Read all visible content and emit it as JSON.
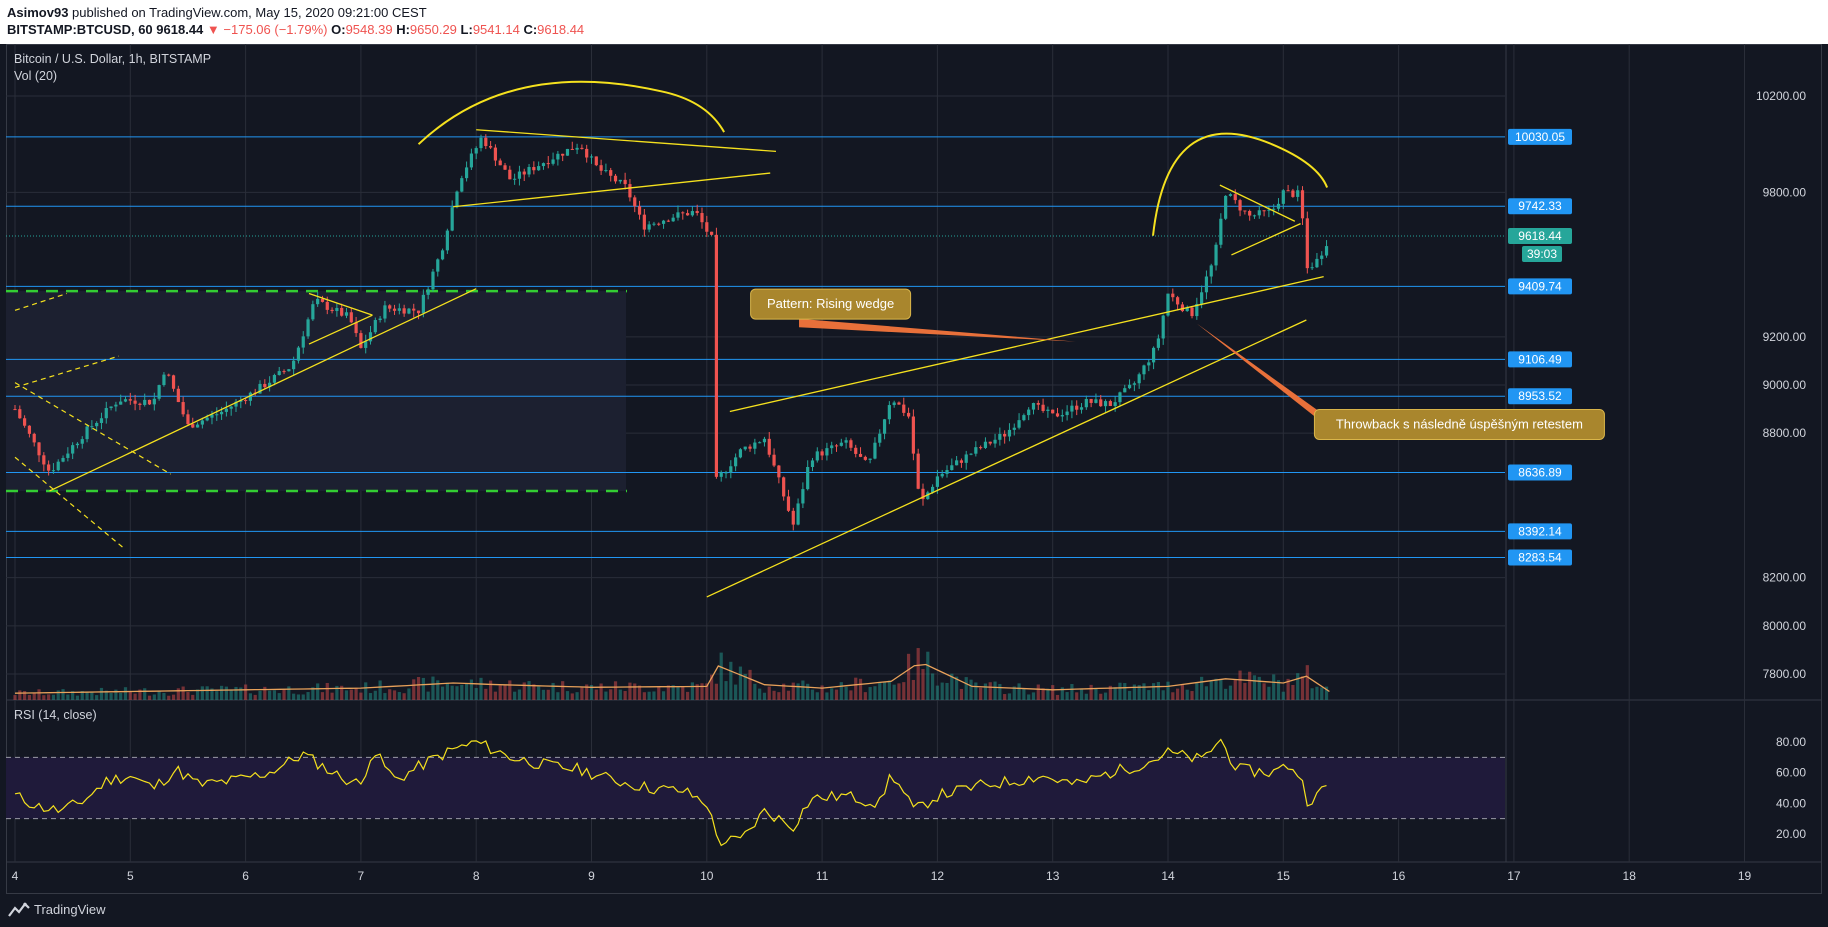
{
  "header": {
    "author": "Asimov93",
    "published_text": "published on TradingView.com, May 15, 2020 09:21:00 CEST",
    "symbol": "BITSTAMP:BTCUSD, 60",
    "last": "9618.44",
    "change_arrow": "▼",
    "change": "−175.06 (−1.79%)",
    "o_label": "O:",
    "o_value": "9548.39",
    "h_label": "H:",
    "h_value": "9650.29",
    "l_label": "L:",
    "l_value": "9541.14",
    "c_label": "C:",
    "c_value": "9618.44"
  },
  "legend": {
    "main_title": "Bitcoin / U.S. Dollar, 1h, BITSTAMP",
    "volume_label": "Vol (20)",
    "rsi_label": "RSI (14, close)"
  },
  "footer": {
    "brand": "TradingView",
    "brand_icon": "tradingview-logo-icon"
  },
  "colors": {
    "background": "#131722",
    "grid": "#2a2e39",
    "up": "#26a69a",
    "down": "#ef5350",
    "level_line": "#2196f3",
    "level_badge": "#2196f3",
    "last_badge": "#26a69a",
    "drawing": "#f5e11e",
    "support_dash": "#33cc33",
    "rsi_line": "#f5e11e",
    "rsi_band": "#1f1a3a",
    "callout_fill": "#a9862d",
    "callout_arrow": "#e8703a"
  },
  "chart_data": {
    "type": "candlestick",
    "x_labels": [
      "4",
      "5",
      "6",
      "7",
      "8",
      "9",
      "10",
      "11",
      "12",
      "13",
      "14",
      "15",
      "16",
      "17",
      "18",
      "19"
    ],
    "price_ticks": [
      "10200.00",
      "9800.00",
      "9200.00",
      "9000.00",
      "8800.00",
      "8200.00",
      "8000.00",
      "7800.00"
    ],
    "price_range": [
      7700,
      10380
    ],
    "price_tick_values": [
      10200,
      9800,
      9200,
      9000,
      8800,
      8200,
      8000,
      7800
    ],
    "levels": [
      {
        "label": "10030.05",
        "value": 10030.05
      },
      {
        "label": "9742.33",
        "value": 9742.33
      },
      {
        "label": "9409.74",
        "value": 9409.74
      },
      {
        "label": "9106.49",
        "value": 9106.49
      },
      {
        "label": "8953.52",
        "value": 8953.52
      },
      {
        "label": "8636.89",
        "value": 8636.89
      },
      {
        "label": "8392.14",
        "value": 8392.14
      },
      {
        "label": "8283.54",
        "value": 8283.54
      }
    ],
    "last_price": {
      "label": "9618.44",
      "value": 9618.44
    },
    "countdown": "39:03",
    "support_zone": {
      "top": 9390,
      "bottom": 8560
    },
    "candles_anchor_closes": [
      [
        4.0,
        8900
      ],
      [
        4.3,
        8640
      ],
      [
        4.6,
        8800
      ],
      [
        4.9,
        8940
      ],
      [
        5.2,
        8930
      ],
      [
        5.3,
        9070
      ],
      [
        5.5,
        8830
      ],
      [
        5.8,
        8890
      ],
      [
        6.1,
        8980
      ],
      [
        6.4,
        9080
      ],
      [
        6.6,
        9350
      ],
      [
        6.9,
        9280
      ],
      [
        7.0,
        9150
      ],
      [
        7.2,
        9320
      ],
      [
        7.5,
        9310
      ],
      [
        7.7,
        9560
      ],
      [
        7.85,
        9850
      ],
      [
        8.05,
        10030
      ],
      [
        8.3,
        9850
      ],
      [
        8.6,
        9930
      ],
      [
        8.9,
        10000
      ],
      [
        9.05,
        9900
      ],
      [
        9.3,
        9820
      ],
      [
        9.45,
        9660
      ],
      [
        9.7,
        9700
      ],
      [
        9.9,
        9720
      ],
      [
        10.05,
        9600
      ],
      [
        10.08,
        8600
      ],
      [
        10.3,
        8730
      ],
      [
        10.5,
        8780
      ],
      [
        10.75,
        8420
      ],
      [
        10.9,
        8700
      ],
      [
        11.2,
        8760
      ],
      [
        11.4,
        8660
      ],
      [
        11.6,
        8950
      ],
      [
        11.75,
        8870
      ],
      [
        11.85,
        8500
      ],
      [
        12.0,
        8620
      ],
      [
        12.3,
        8720
      ],
      [
        12.6,
        8800
      ],
      [
        12.8,
        8920
      ],
      [
        13.0,
        8870
      ],
      [
        13.3,
        8930
      ],
      [
        13.5,
        8920
      ],
      [
        13.7,
        9000
      ],
      [
        13.9,
        9160
      ],
      [
        14.0,
        9380
      ],
      [
        14.2,
        9290
      ],
      [
        14.4,
        9520
      ],
      [
        14.5,
        9800
      ],
      [
        14.7,
        9700
      ],
      [
        14.9,
        9720
      ],
      [
        15.0,
        9800
      ],
      [
        15.15,
        9790
      ],
      [
        15.2,
        9480
      ],
      [
        15.3,
        9520
      ],
      [
        15.4,
        9618
      ]
    ],
    "rsi_ticks": [
      "80.00",
      "60.00",
      "40.00",
      "20.00"
    ],
    "rsi_tick_values": [
      80,
      60,
      40,
      20
    ],
    "rsi_range": [
      5,
      90
    ],
    "rsi_band": [
      30,
      70
    ],
    "rsi_anchors": [
      [
        4.0,
        45
      ],
      [
        4.2,
        38
      ],
      [
        4.4,
        35
      ],
      [
        4.6,
        42
      ],
      [
        4.8,
        55
      ],
      [
        5.0,
        58
      ],
      [
        5.2,
        50
      ],
      [
        5.4,
        62
      ],
      [
        5.6,
        52
      ],
      [
        5.9,
        55
      ],
      [
        6.2,
        60
      ],
      [
        6.5,
        72
      ],
      [
        6.8,
        58
      ],
      [
        7.0,
        52
      ],
      [
        7.1,
        75
      ],
      [
        7.3,
        55
      ],
      [
        7.6,
        68
      ],
      [
        7.8,
        75
      ],
      [
        8.0,
        80
      ],
      [
        8.3,
        70
      ],
      [
        8.6,
        65
      ],
      [
        8.9,
        62
      ],
      [
        9.2,
        55
      ],
      [
        9.5,
        50
      ],
      [
        9.8,
        48
      ],
      [
        10.0,
        40
      ],
      [
        10.1,
        15
      ],
      [
        10.3,
        16
      ],
      [
        10.5,
        35
      ],
      [
        10.75,
        25
      ],
      [
        10.9,
        43
      ],
      [
        11.2,
        45
      ],
      [
        11.5,
        40
      ],
      [
        11.6,
        60
      ],
      [
        11.8,
        35
      ],
      [
        12.0,
        45
      ],
      [
        12.4,
        52
      ],
      [
        12.7,
        55
      ],
      [
        12.9,
        58
      ],
      [
        13.2,
        52
      ],
      [
        13.5,
        60
      ],
      [
        13.8,
        66
      ],
      [
        14.0,
        73
      ],
      [
        14.3,
        68
      ],
      [
        14.45,
        82
      ],
      [
        14.6,
        62
      ],
      [
        14.9,
        60
      ],
      [
        15.05,
        65
      ],
      [
        15.15,
        58
      ],
      [
        15.2,
        42
      ],
      [
        15.3,
        45
      ],
      [
        15.38,
        52
      ]
    ],
    "volume_anchor": [
      [
        4.0,
        8
      ],
      [
        5.0,
        10
      ],
      [
        6.0,
        12
      ],
      [
        7.0,
        14
      ],
      [
        7.8,
        20
      ],
      [
        8.2,
        18
      ],
      [
        9.0,
        15
      ],
      [
        10.0,
        16
      ],
      [
        10.1,
        40
      ],
      [
        10.5,
        18
      ],
      [
        11.0,
        14
      ],
      [
        11.6,
        22
      ],
      [
        11.85,
        45
      ],
      [
        12.3,
        16
      ],
      [
        13.0,
        12
      ],
      [
        14.0,
        16
      ],
      [
        14.5,
        25
      ],
      [
        15.0,
        20
      ],
      [
        15.2,
        28
      ],
      [
        15.4,
        10
      ]
    ],
    "annotations": [
      {
        "text": "Pattern: Rising wedge"
      },
      {
        "text": "Throwback s následně úspěšným retestem"
      }
    ]
  }
}
